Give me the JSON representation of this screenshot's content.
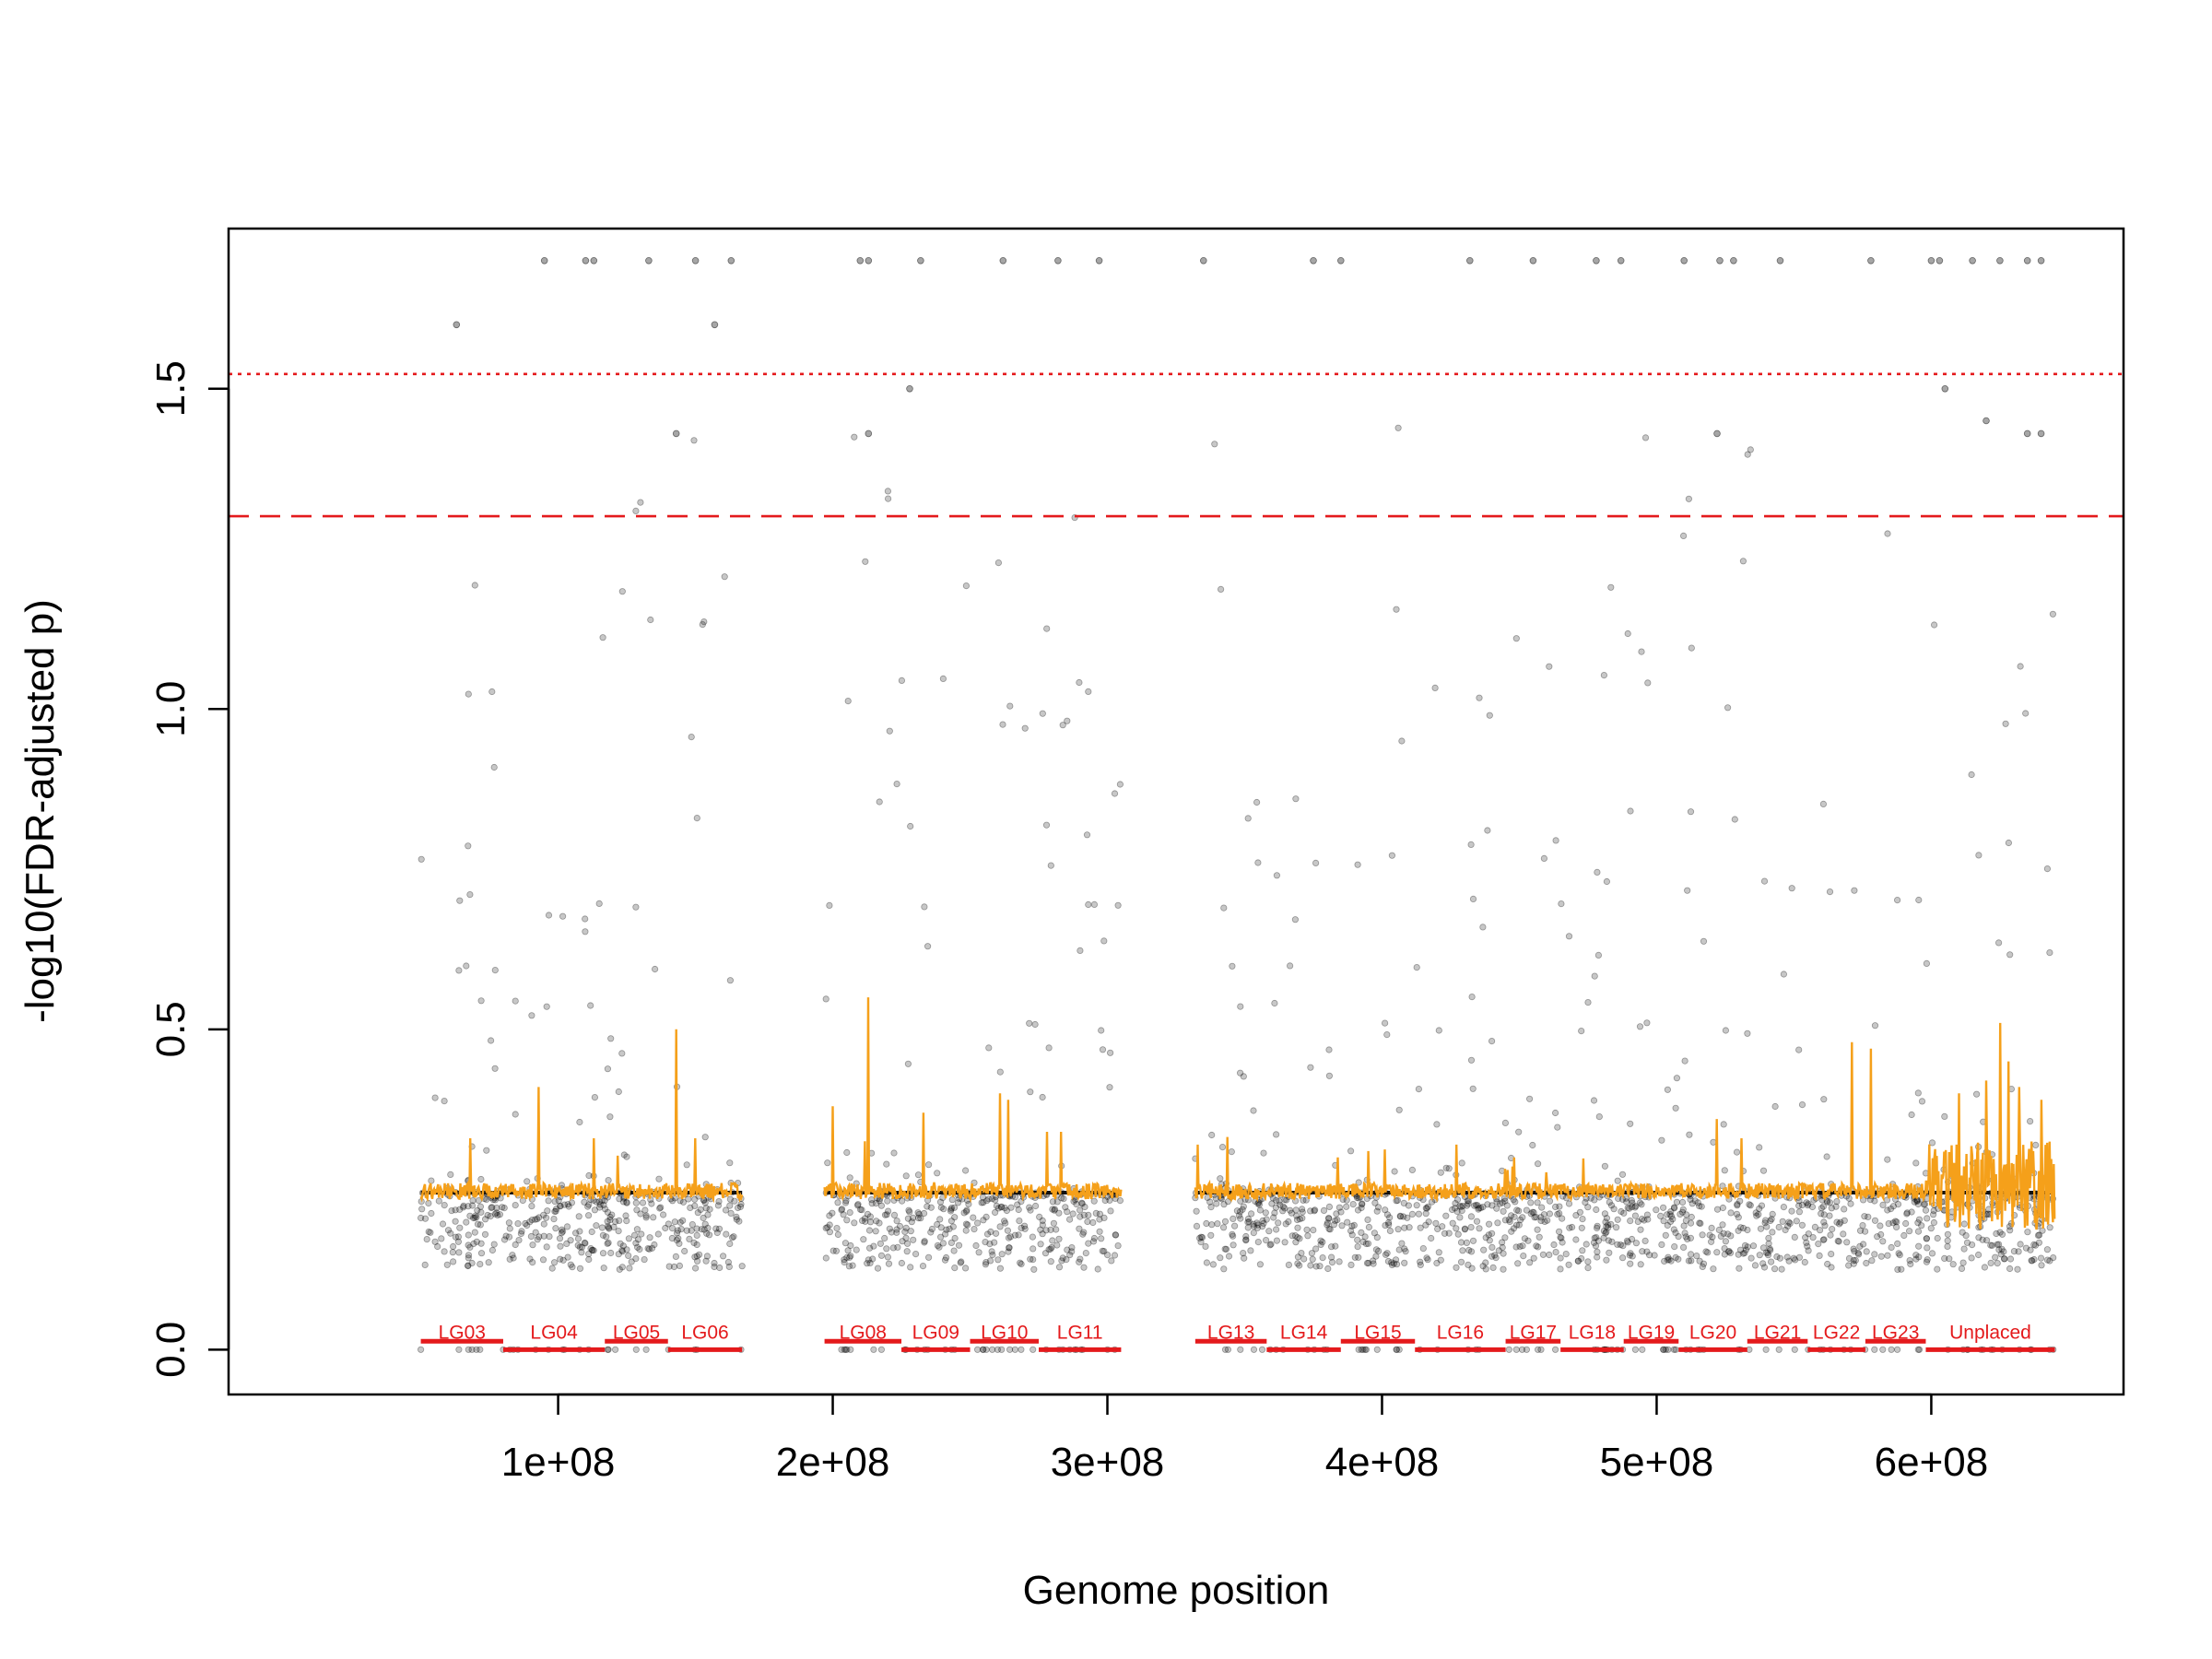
{
  "chart_data": {
    "type": "scatter",
    "title": "",
    "xlabel": "Genome position",
    "ylabel": "-log10(FDR-adjusted p)",
    "xlim": [
      -20000000,
      670000000
    ],
    "ylim": [
      -0.07,
      1.75
    ],
    "x_ticks": [
      {
        "value": 100000000,
        "label": "1e+08"
      },
      {
        "value": 200000000,
        "label": "2e+08"
      },
      {
        "value": 300000000,
        "label": "3e+08"
      },
      {
        "value": 400000000,
        "label": "4e+08"
      },
      {
        "value": 500000000,
        "label": "5e+08"
      },
      {
        "value": 600000000,
        "label": "6e+08"
      }
    ],
    "y_ticks": [
      {
        "value": 0.0,
        "label": "0.0"
      },
      {
        "value": 0.5,
        "label": "0.5"
      },
      {
        "value": 1.0,
        "label": "1.0"
      },
      {
        "value": 1.5,
        "label": "1.5"
      }
    ],
    "grid": false,
    "threshold_lines": [
      {
        "y": 1.523,
        "style": "dotted",
        "color": "#e41a1c"
      },
      {
        "y": 1.301,
        "style": "dashed",
        "color": "#e41a1c"
      }
    ],
    "baseline_value": 0.245,
    "linkage_groups": [
      {
        "name": "LG03",
        "start": 50000000,
        "end": 80000000,
        "row": 0
      },
      {
        "name": "LG04",
        "start": 80000000,
        "end": 117000000,
        "row": 1
      },
      {
        "name": "LG05",
        "start": 117000000,
        "end": 140000000,
        "row": 0
      },
      {
        "name": "LG06",
        "start": 140000000,
        "end": 167000000,
        "row": 1
      },
      {
        "name": "LG08",
        "start": 197000000,
        "end": 225000000,
        "row": 0
      },
      {
        "name": "LG09",
        "start": 225000000,
        "end": 250000000,
        "row": 1
      },
      {
        "name": "LG10",
        "start": 250000000,
        "end": 275000000,
        "row": 0
      },
      {
        "name": "LG11",
        "start": 275000000,
        "end": 305000000,
        "row": 1
      },
      {
        "name": "LG13",
        "start": 332000000,
        "end": 358000000,
        "row": 0
      },
      {
        "name": "LG14",
        "start": 358000000,
        "end": 385000000,
        "row": 1
      },
      {
        "name": "LG15",
        "start": 385000000,
        "end": 412000000,
        "row": 0
      },
      {
        "name": "LG16",
        "start": 412000000,
        "end": 445000000,
        "row": 1
      },
      {
        "name": "LG17",
        "start": 445000000,
        "end": 465000000,
        "row": 0
      },
      {
        "name": "LG18",
        "start": 465000000,
        "end": 488000000,
        "row": 1
      },
      {
        "name": "LG19",
        "start": 488000000,
        "end": 508000000,
        "row": 0
      },
      {
        "name": "LG20",
        "start": 508000000,
        "end": 533000000,
        "row": 1
      },
      {
        "name": "LG21",
        "start": 533000000,
        "end": 555000000,
        "row": 0
      },
      {
        "name": "LG22",
        "start": 555000000,
        "end": 576000000,
        "row": 1
      },
      {
        "name": "LG23",
        "start": 576000000,
        "end": 598000000,
        "row": 0
      },
      {
        "name": "Unplaced",
        "start": 598000000,
        "end": 645000000,
        "row": 1
      }
    ],
    "top_hits": [
      {
        "x": 63000000,
        "y": 1.6
      },
      {
        "x": 95000000,
        "y": 1.7
      },
      {
        "x": 110000000,
        "y": 1.7
      },
      {
        "x": 113000000,
        "y": 1.7
      },
      {
        "x": 133000000,
        "y": 1.7
      },
      {
        "x": 150000000,
        "y": 1.7
      },
      {
        "x": 157000000,
        "y": 1.6
      },
      {
        "x": 163000000,
        "y": 1.7
      },
      {
        "x": 210000000,
        "y": 1.7
      },
      {
        "x": 213000000,
        "y": 1.7
      },
      {
        "x": 232000000,
        "y": 1.7
      },
      {
        "x": 262000000,
        "y": 1.7
      },
      {
        "x": 282000000,
        "y": 1.7
      },
      {
        "x": 297000000,
        "y": 1.7
      },
      {
        "x": 335000000,
        "y": 1.7
      },
      {
        "x": 375000000,
        "y": 1.7
      },
      {
        "x": 385000000,
        "y": 1.7
      },
      {
        "x": 432000000,
        "y": 1.7
      },
      {
        "x": 455000000,
        "y": 1.7
      },
      {
        "x": 478000000,
        "y": 1.7
      },
      {
        "x": 487000000,
        "y": 1.7
      },
      {
        "x": 510000000,
        "y": 1.7
      },
      {
        "x": 523000000,
        "y": 1.7
      },
      {
        "x": 528000000,
        "y": 1.7
      },
      {
        "x": 545000000,
        "y": 1.7
      },
      {
        "x": 578000000,
        "y": 1.7
      },
      {
        "x": 600000000,
        "y": 1.7
      },
      {
        "x": 603000000,
        "y": 1.7
      },
      {
        "x": 615000000,
        "y": 1.7
      },
      {
        "x": 625000000,
        "y": 1.7
      },
      {
        "x": 635000000,
        "y": 1.7
      },
      {
        "x": 640000000,
        "y": 1.7
      },
      {
        "x": 143000000,
        "y": 1.43
      },
      {
        "x": 213000000,
        "y": 1.43
      },
      {
        "x": 522000000,
        "y": 1.43
      },
      {
        "x": 635000000,
        "y": 1.43
      },
      {
        "x": 640000000,
        "y": 1.43
      },
      {
        "x": 228000000,
        "y": 1.5
      },
      {
        "x": 620000000,
        "y": 1.45
      },
      {
        "x": 605000000,
        "y": 1.5
      }
    ],
    "peaks": [
      {
        "x": 68000000,
        "y": 0.33
      },
      {
        "x": 93000000,
        "y": 0.41
      },
      {
        "x": 113000000,
        "y": 0.33
      },
      {
        "x": 143000000,
        "y": 0.5
      },
      {
        "x": 150000000,
        "y": 0.33
      },
      {
        "x": 200000000,
        "y": 0.38
      },
      {
        "x": 213000000,
        "y": 0.55
      },
      {
        "x": 233000000,
        "y": 0.37
      },
      {
        "x": 261000000,
        "y": 0.4
      },
      {
        "x": 264000000,
        "y": 0.39
      },
      {
        "x": 278000000,
        "y": 0.34
      },
      {
        "x": 283000000,
        "y": 0.34
      },
      {
        "x": 333000000,
        "y": 0.32
      },
      {
        "x": 384000000,
        "y": 0.3
      },
      {
        "x": 395000000,
        "y": 0.31
      },
      {
        "x": 427000000,
        "y": 0.32
      },
      {
        "x": 448000000,
        "y": 0.3
      },
      {
        "x": 522000000,
        "y": 0.36
      },
      {
        "x": 531000000,
        "y": 0.33
      },
      {
        "x": 571000000,
        "y": 0.48
      },
      {
        "x": 578000000,
        "y": 0.47
      },
      {
        "x": 610000000,
        "y": 0.4
      },
      {
        "x": 620000000,
        "y": 0.42
      },
      {
        "x": 625000000,
        "y": 0.51
      },
      {
        "x": 628000000,
        "y": 0.45
      },
      {
        "x": 632000000,
        "y": 0.41
      },
      {
        "x": 640000000,
        "y": 0.39
      }
    ]
  }
}
